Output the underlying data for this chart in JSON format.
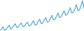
{
  "line_color": "#5aaadc",
  "background_color": "#ffffff",
  "linewidth": 0.9,
  "figsize": [
    1.2,
    0.45
  ],
  "dpi": 100,
  "values": [
    0.7,
    0.8,
    1.1,
    0.6,
    0.8,
    1.0,
    1.3,
    0.8,
    1.0,
    1.2,
    1.5,
    1.0,
    1.1,
    1.4,
    1.6,
    1.1,
    1.2,
    1.5,
    1.7,
    1.2,
    1.3,
    1.6,
    1.9,
    1.3,
    1.4,
    1.8,
    2.1,
    1.5,
    1.6,
    2.0,
    2.3,
    1.7,
    1.8,
    2.2,
    2.6,
    2.0,
    2.1,
    2.5,
    2.9,
    2.3,
    2.4,
    2.8,
    3.2,
    2.6,
    2.7,
    3.1,
    3.6,
    2.9,
    3.0,
    3.4,
    4.0,
    3.2,
    3.3,
    3.8,
    4.5,
    3.5
  ]
}
